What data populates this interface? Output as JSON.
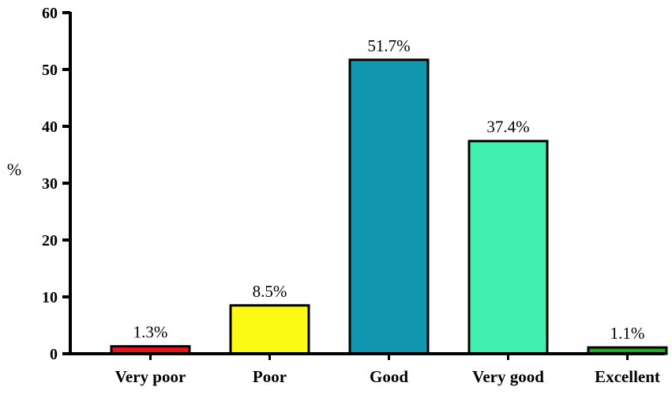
{
  "chart_data": {
    "type": "bar",
    "categories": [
      "Very poor",
      "Poor",
      "Good",
      "Very good",
      "Excellent"
    ],
    "values": [
      1.3,
      8.5,
      51.7,
      37.4,
      1.1
    ],
    "data_labels": [
      "1.3%",
      "8.5%",
      "51.7%",
      "37.4%",
      "1.1%"
    ],
    "bar_colors": [
      "#e8141c",
      "#fafa14",
      "#1297b0",
      "#41f0b0",
      "#22aa22"
    ],
    "title": "",
    "xlabel": "",
    "ylabel": "%",
    "ylim": [
      0,
      60
    ],
    "yticks": [
      0,
      10,
      20,
      30,
      40,
      50,
      60
    ],
    "grid": false,
    "legend": "none"
  }
}
